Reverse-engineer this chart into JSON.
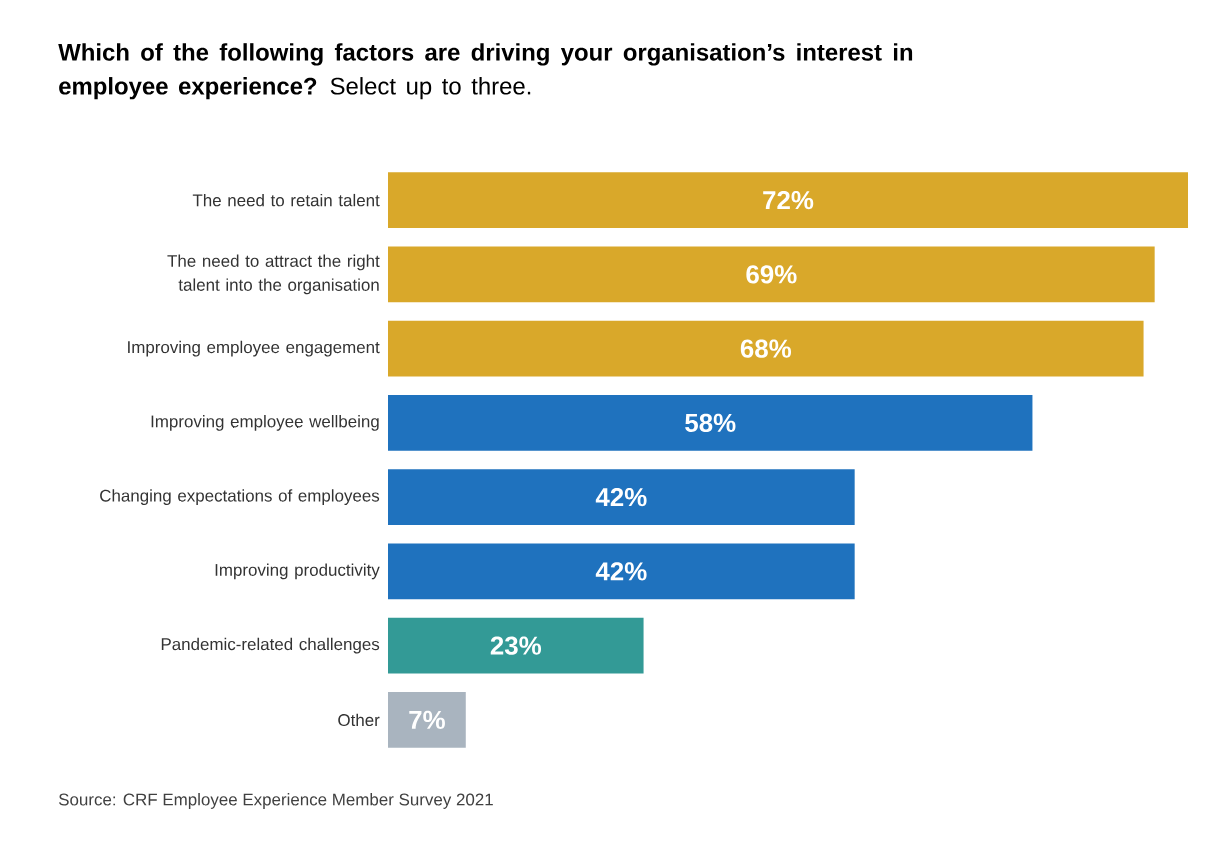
{
  "chart_data": {
    "type": "bar",
    "orientation": "horizontal",
    "title": "**Which of the following factors are driving your organisation’s interest in employee experience?** Select up to three.",
    "categories": [
      "The need to retain talent",
      "The need to attract the right talent into the organisation",
      "Improving employee engagement",
      "Improving employee wellbeing",
      "Changing expectations of employees",
      "Improving productivity",
      "Pandemic-related challenges",
      "Other"
    ],
    "values": [
      72,
      69,
      68,
      58,
      42,
      42,
      23,
      7
    ],
    "colors": [
      "#d9a82a",
      "#d9a82a",
      "#d9a82a",
      "#1f72be",
      "#1f72be",
      "#1f72be",
      "#339a96",
      "#a9b4bf"
    ],
    "value_labels": [
      "72%",
      "69%",
      "68%",
      "58%",
      "42%",
      "42%",
      "23%",
      "7%"
    ],
    "annotations": [
      "Source: CRF Employee Experience Member Survey 2021"
    ]
  }
}
